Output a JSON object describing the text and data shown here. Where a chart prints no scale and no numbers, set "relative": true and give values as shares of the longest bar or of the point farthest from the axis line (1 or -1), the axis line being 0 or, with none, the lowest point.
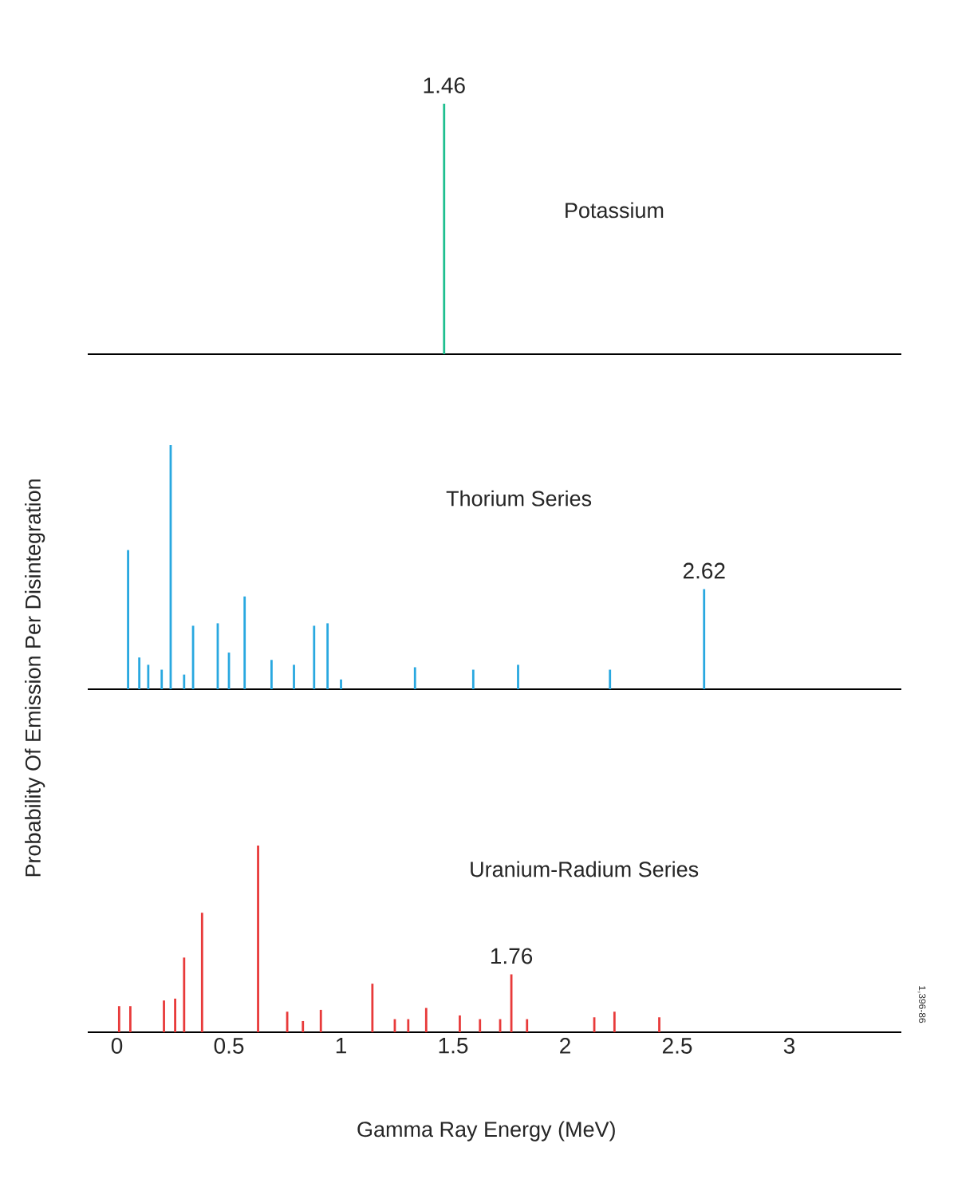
{
  "chart_data": [
    {
      "type": "bar",
      "relative": true,
      "tick_labels": false,
      "xlim": [
        -0.13,
        3.5
      ],
      "x": [
        1.46
      ],
      "series": [
        {
          "name": "Potassium",
          "color": "#1fbf8f",
          "values": [
            1
          ]
        }
      ],
      "annotations": [
        {
          "text": "1.46",
          "x": 1.46,
          "y": 1
        }
      ]
    },
    {
      "type": "bar",
      "relative": true,
      "tick_labels": false,
      "xlim": [
        -0.13,
        3.5
      ],
      "ylabel": "Probability Of Emission Per Disintegration",
      "x": [
        0.05,
        0.1,
        0.14,
        0.2,
        0.24,
        0.3,
        0.34,
        0.45,
        0.5,
        0.57,
        0.69,
        0.79,
        0.88,
        0.94,
        1.0,
        1.33,
        1.59,
        1.79,
        2.2,
        2.62
      ],
      "series": [
        {
          "name": "Thorium Series",
          "color": "#29a8e0",
          "values": [
            0.57,
            0.13,
            0.1,
            0.08,
            1,
            0.06,
            0.26,
            0.27,
            0.15,
            0.38,
            0.12,
            0.1,
            0.26,
            0.27,
            0.04,
            0.09,
            0.08,
            0.1,
            0.08,
            0.41
          ]
        }
      ],
      "annotations": [
        {
          "text": "2.62",
          "x": 2.62,
          "y": 0.41
        }
      ]
    },
    {
      "type": "bar",
      "relative": true,
      "tick_labels": "x",
      "xlim": [
        -0.13,
        3.5
      ],
      "xticks": [
        0,
        0.5,
        1,
        1.5,
        2,
        2.5,
        3
      ],
      "xlabel": "Gamma Ray Energy (MeV)",
      "x": [
        0.01,
        0.06,
        0.21,
        0.26,
        0.3,
        0.38,
        0.63,
        0.76,
        0.83,
        0.91,
        1.14,
        1.24,
        1.3,
        1.38,
        1.53,
        1.62,
        1.71,
        1.76,
        1.83,
        2.13,
        2.22,
        2.42
      ],
      "series": [
        {
          "name": "Uranium-Radium Series",
          "color": "#e83a3a",
          "values": [
            0.14,
            0.14,
            0.17,
            0.18,
            0.4,
            0.64,
            1,
            0.11,
            0.06,
            0.12,
            0.26,
            0.07,
            0.07,
            0.13,
            0.09,
            0.07,
            0.07,
            0.31,
            0.07,
            0.08,
            0.11,
            0.08
          ]
        }
      ],
      "annotations": [
        {
          "text": "1.76",
          "x": 1.76,
          "y": 0.31
        },
        "1,396-86"
      ]
    }
  ]
}
